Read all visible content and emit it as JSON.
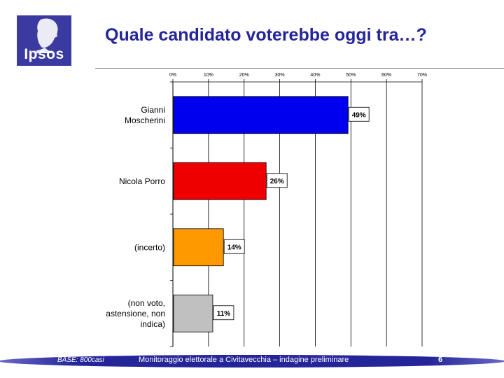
{
  "brand": {
    "name": "Ipsos",
    "color": "#3a3aa0"
  },
  "title": "Quale candidato voterebbe oggi tra…?",
  "chart_data": {
    "type": "bar",
    "orientation": "horizontal",
    "categories": [
      [
        "Gianni",
        "Moscherini"
      ],
      [
        "Nicola Porro"
      ],
      [
        "(incerto)"
      ],
      [
        "(non voto,",
        "astensione, non",
        "indica)"
      ]
    ],
    "values": [
      49,
      26,
      14,
      11
    ],
    "data_labels": [
      "49%",
      "26%",
      "14%",
      "11%"
    ],
    "colors": [
      "#0000ee",
      "#ee0000",
      "#ff9900",
      "#c0c0c0"
    ],
    "x_ticks": [
      "0%",
      "10%",
      "20%",
      "30%",
      "40%",
      "50%",
      "60%",
      "70%"
    ],
    "xlim": [
      0,
      70
    ],
    "grid": true,
    "axis_position": "top"
  },
  "footer": {
    "base": "BASE: 800casi",
    "caption": "Monitoraggio elettorale a Civitavecchia – indagine preliminare",
    "page": "6"
  }
}
